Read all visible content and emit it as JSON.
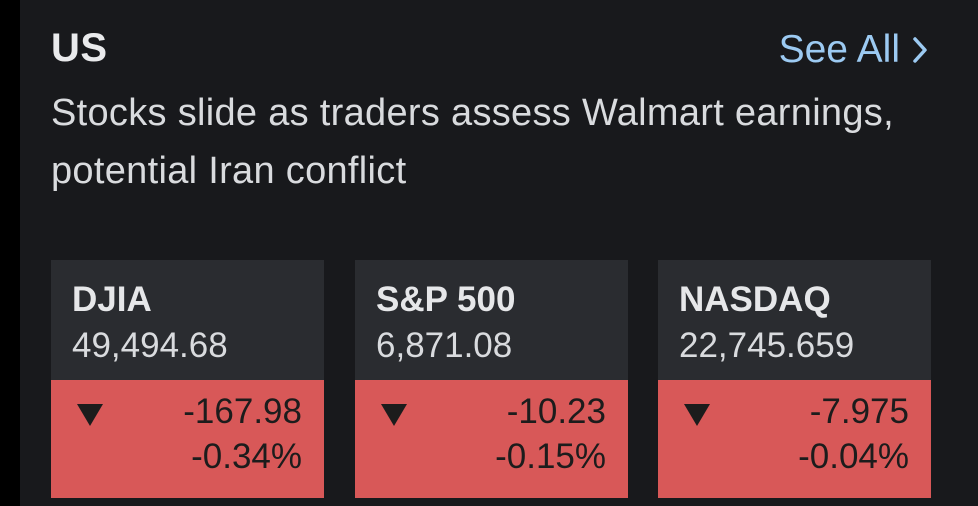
{
  "section": {
    "title": "US",
    "see_all_label": "See All",
    "headline": "Stocks slide as traders assess Walmart earnings, potential Iran conflict"
  },
  "colors": {
    "background": "#18191c",
    "tile": "#2a2c30",
    "negative": "#d85858",
    "link": "#9ccaf2"
  },
  "indices": [
    {
      "name": "DJIA",
      "price": "49,494.68",
      "change": "-167.98",
      "percent": "-0.34%",
      "direction_icon": "down-triangle-icon"
    },
    {
      "name": "S&P 500",
      "price": "6,871.08",
      "change": "-10.23",
      "percent": "-0.15%",
      "direction_icon": "down-triangle-icon"
    },
    {
      "name": "NASDAQ",
      "price": "22,745.659",
      "change": "-7.975",
      "percent": "-0.04%",
      "direction_icon": "down-triangle-icon"
    }
  ]
}
